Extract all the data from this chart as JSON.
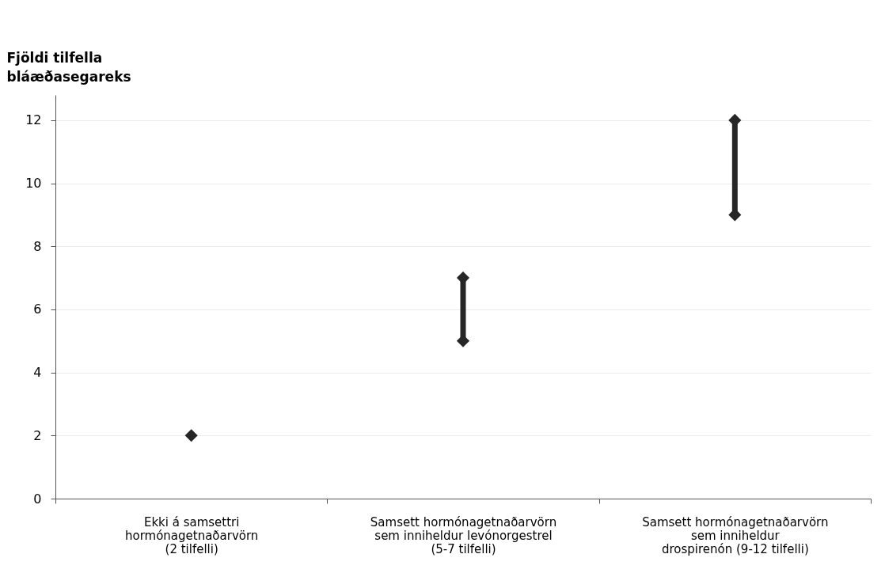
{
  "chart_data": {
    "type": "scatter",
    "ylabel": "Fjöldi tilfella\nbláæðasegareks",
    "categories": [
      "Ekki á samsettri\nhormónagetnaðarvörn\n(2 tilfelli)",
      "Samsett hormónagetnaðarvörn\nsem inniheldur levónorgestrel\n(5-7 tilfelli)",
      "Samsett hormónagetnaðarvörn\nsem inniheldur\ndrospirenón (9-12 tilfelli)"
    ],
    "series": [
      {
        "type": "bar",
        "color": "#262626",
        "base": [
          null,
          5,
          9
        ],
        "values": [
          null,
          2,
          3
        ]
      },
      {
        "color": "#262626",
        "values": [
          2,
          5,
          9
        ]
      },
      {
        "color": "#262626",
        "values": [
          null,
          7,
          12
        ]
      }
    ],
    "ylim": [
      0,
      12.8
    ],
    "yticks": [
      0,
      2,
      4,
      6,
      8,
      10,
      12
    ],
    "grid": "y",
    "marker": "diamond"
  }
}
